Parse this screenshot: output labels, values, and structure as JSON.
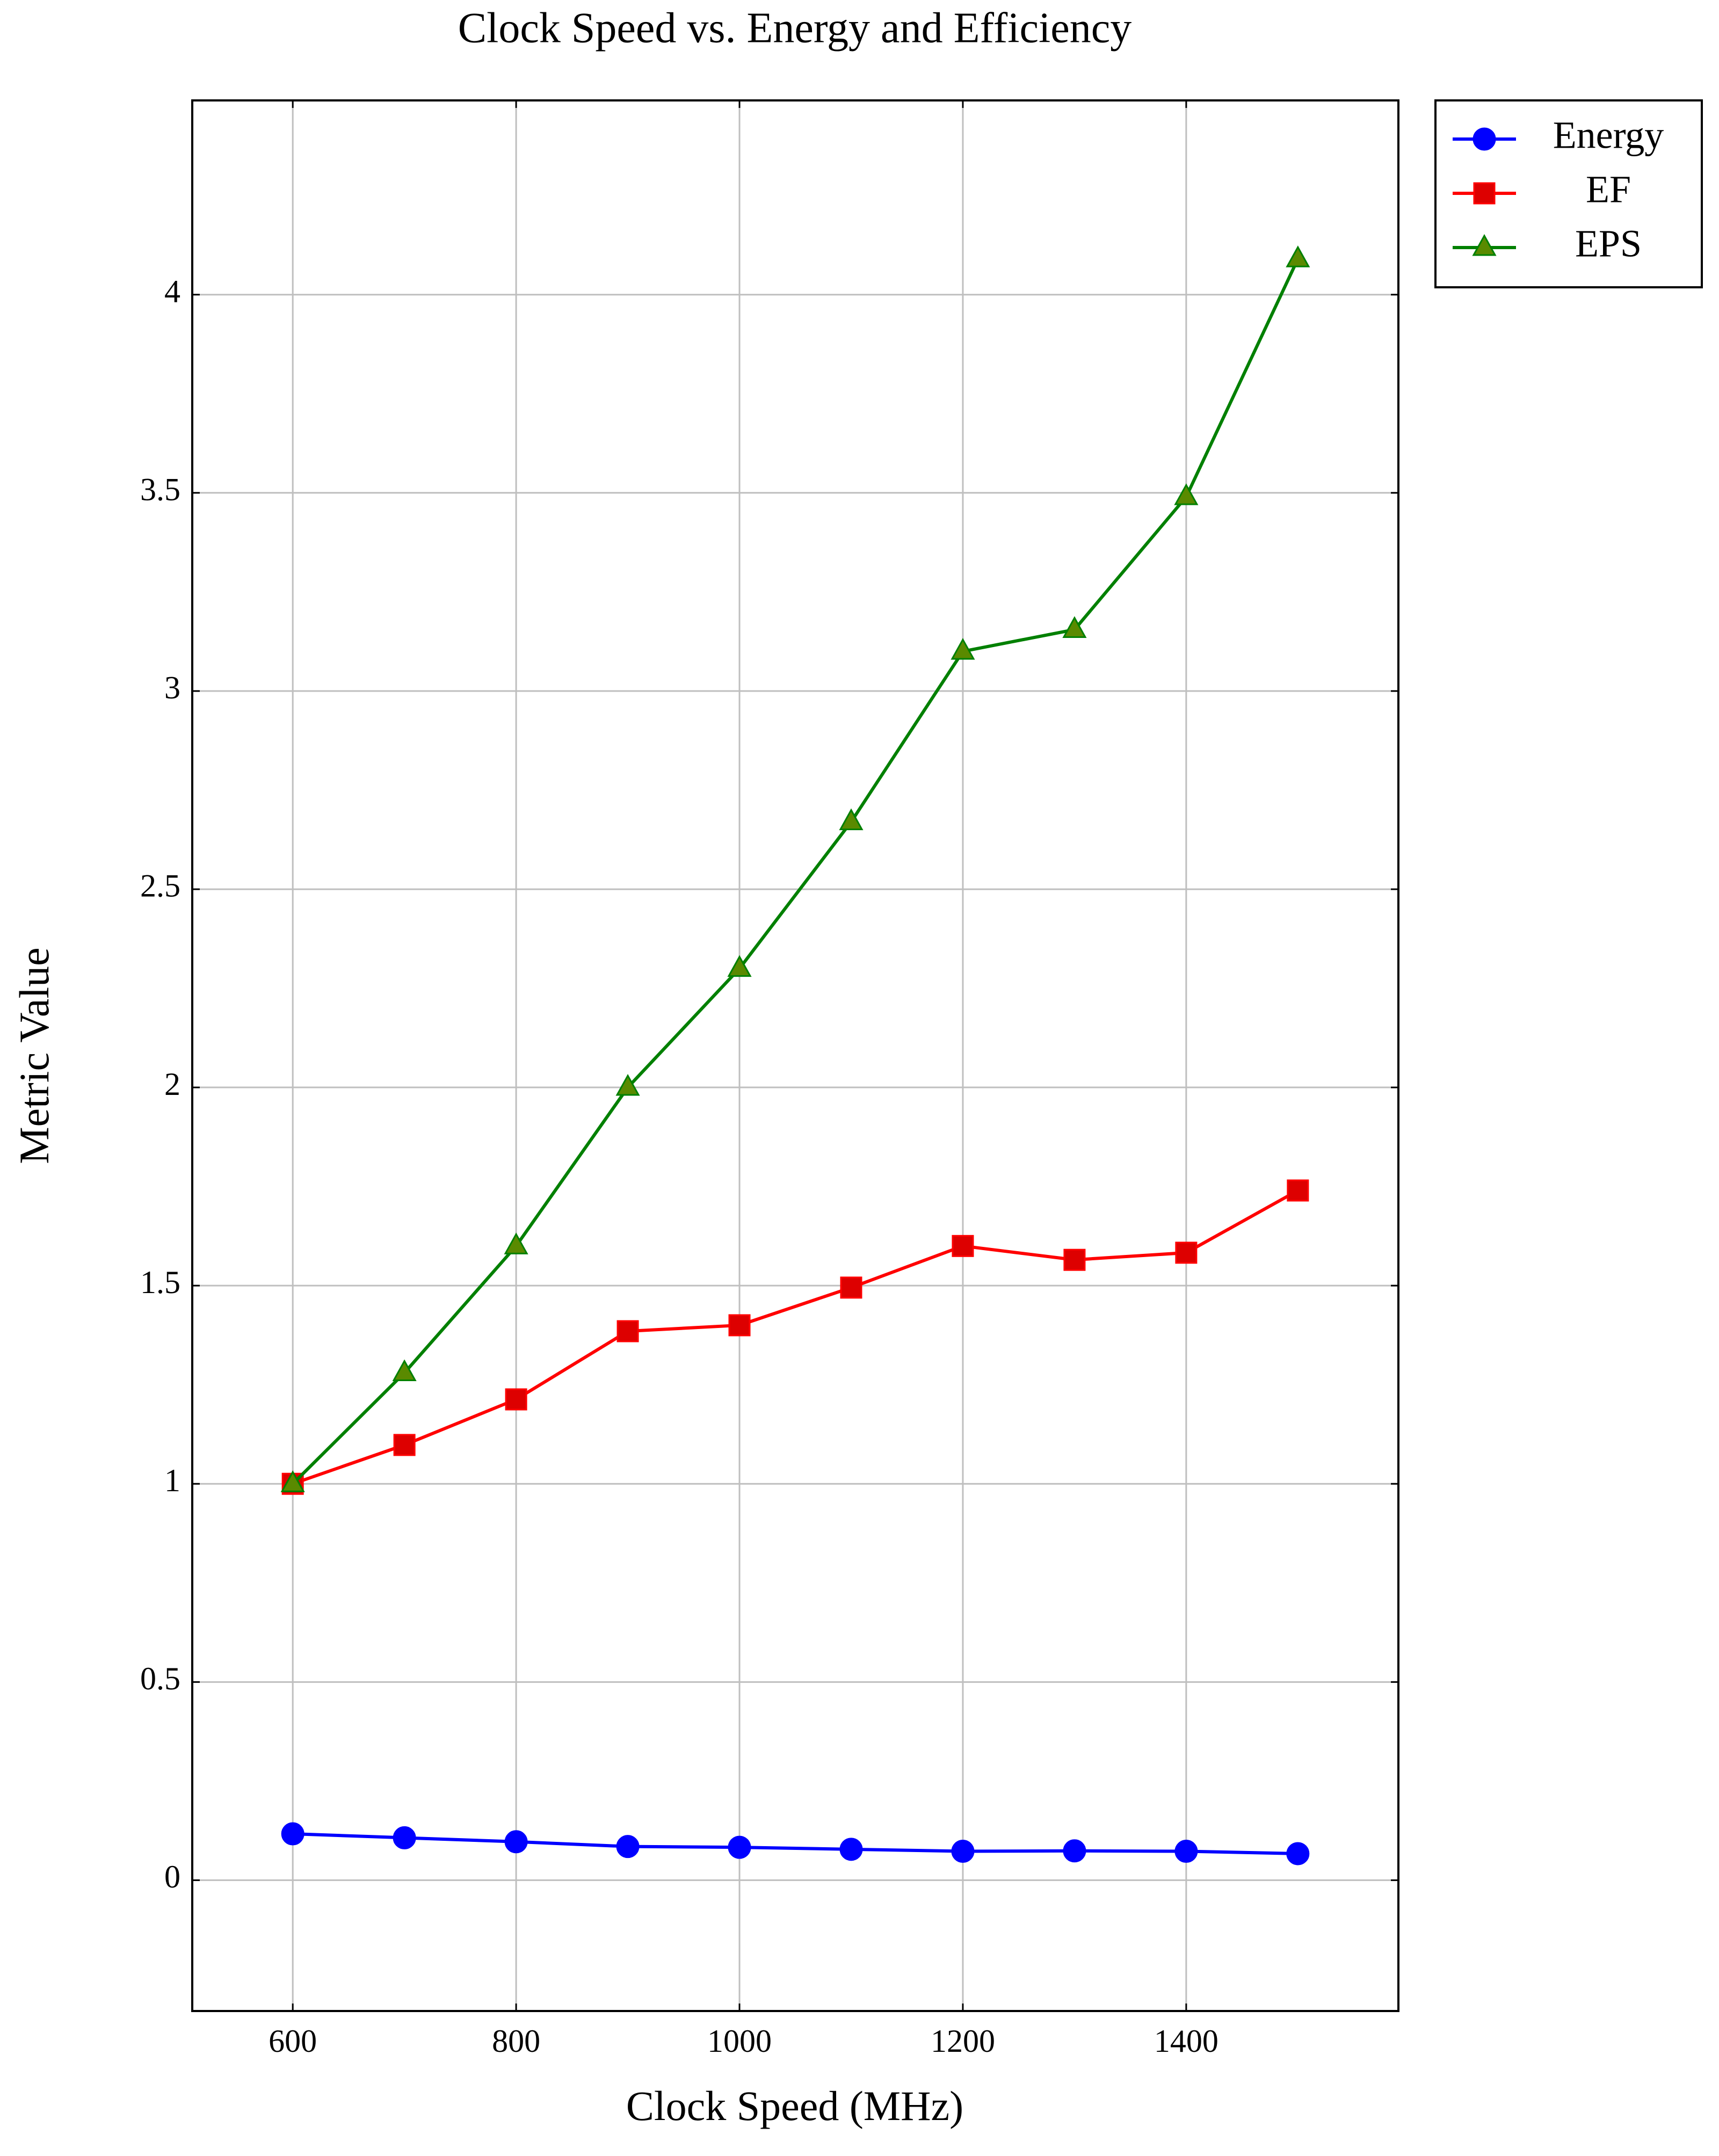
{
  "chart_data": {
    "type": "line",
    "title": "Clock Speed vs. Energy and Efficiency",
    "xlabel": "Clock Speed (MHz)",
    "ylabel": "Metric Value",
    "x": [
      600,
      700,
      800,
      900,
      1000,
      1100,
      1200,
      1300,
      1400,
      1500
    ],
    "series": [
      {
        "name": "Energy",
        "color": "#0000ff",
        "marker": "circle",
        "values": [
          0.117,
          0.107,
          0.097,
          0.085,
          0.083,
          0.078,
          0.073,
          0.074,
          0.073,
          0.067
        ]
      },
      {
        "name": "EF",
        "color": "#ff0000",
        "marker": "square",
        "values": [
          1.0,
          1.098,
          1.213,
          1.385,
          1.4,
          1.495,
          1.6,
          1.565,
          1.583,
          1.74
        ]
      },
      {
        "name": "EPS",
        "color": "#008000",
        "marker": "triangle",
        "values": [
          1.0,
          1.28,
          1.6,
          2.0,
          2.3,
          2.67,
          3.1,
          3.155,
          3.49,
          4.09
        ]
      }
    ],
    "xlim": [
      510,
      1590
    ],
    "xticks": [
      600,
      800,
      1000,
      1200,
      1400
    ],
    "ylim": [
      -0.33,
      4.49
    ],
    "yticks": [
      0,
      0.5,
      1,
      1.5,
      2,
      2.5,
      3,
      3.5,
      4
    ],
    "grid": true,
    "legend": "outside-top-right"
  }
}
